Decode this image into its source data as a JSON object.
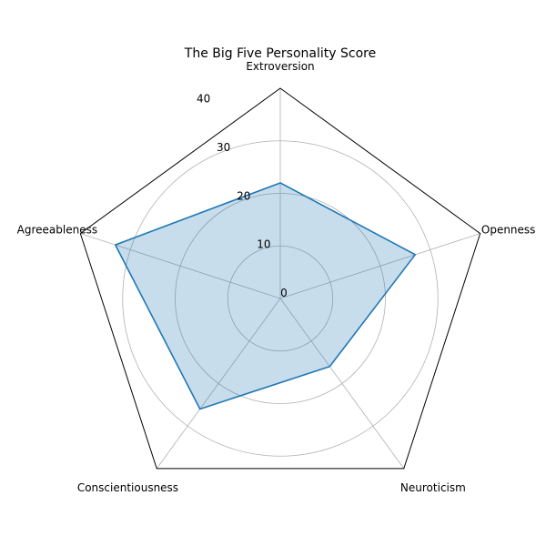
{
  "chart_data": {
    "type": "radar",
    "title": "The Big Five Personality Score",
    "categories": [
      "Extroversion",
      "Openness",
      "Neuroticism",
      "Conscientiousness",
      "Agreeableness"
    ],
    "series": [
      {
        "values": [
          22,
          27,
          16,
          26,
          33
        ]
      }
    ],
    "rlim": [
      0,
      40
    ],
    "rticks": [
      "0",
      "10",
      "20",
      "30",
      "40"
    ],
    "grid": true,
    "colors": {
      "line": "#1f77b4",
      "fill": "#1f77b4",
      "grid": "#b0b0b0",
      "frame": "#000000"
    }
  }
}
